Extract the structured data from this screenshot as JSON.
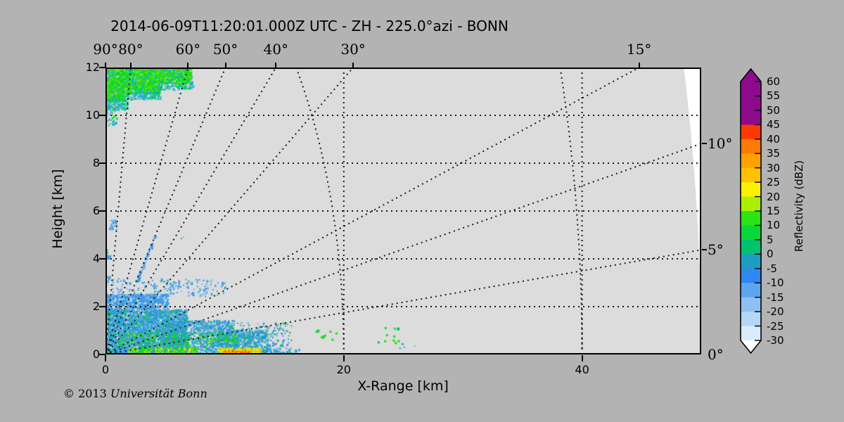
{
  "figure": {
    "outer_bg": "#b3b3b3",
    "plot_bg": "#dcdcdc",
    "beyond_range_bg": "#ffffff",
    "axis_color": "#000000",
    "dot_color": "#1a1a1a"
  },
  "footer": {
    "copyright_prefix": "© 2013",
    "copyright_name": "Universität Bonn"
  },
  "chart_data": {
    "type": "heatmap",
    "subtype": "radar-rhi",
    "title": "2014-06-09T11:20:01.000Z UTC - ZH - 225.0°azi - BONN",
    "xlabel": "X-Range [km]",
    "ylabel": "Height [km]",
    "xlim": [
      0,
      50
    ],
    "ylim": [
      0,
      12
    ],
    "x_ticks": [
      0,
      20,
      40
    ],
    "y_ticks": [
      0,
      2,
      4,
      6,
      8,
      10,
      12
    ],
    "grid": {
      "style": "dotted",
      "horizontal_km": [
        2,
        4,
        6,
        8,
        10
      ],
      "vertical_km": [
        20,
        40
      ],
      "range_arcs_km": [
        20,
        40
      ]
    },
    "max_range_km": 50,
    "elevation_rays_deg": [
      90,
      80,
      60,
      50,
      40,
      30,
      15,
      10,
      5,
      0
    ],
    "rays": {
      "top": [
        {
          "deg": 90,
          "label": "90°"
        },
        {
          "deg": 80,
          "label": "80°"
        },
        {
          "deg": 60,
          "label": "60°"
        },
        {
          "deg": 50,
          "label": "50°"
        },
        {
          "deg": 40,
          "label": "40°"
        },
        {
          "deg": 30,
          "label": "30°"
        },
        {
          "deg": 15,
          "label": "15°"
        }
      ],
      "right": [
        {
          "deg": 10,
          "label": "10°"
        },
        {
          "deg": 5,
          "label": "5°"
        },
        {
          "deg": 0,
          "label": "0°"
        }
      ]
    },
    "colorbar": {
      "label": "Reflectivity (dBZ)",
      "tick_values": [
        60,
        55,
        50,
        45,
        40,
        35,
        30,
        25,
        20,
        15,
        10,
        5,
        0,
        -5,
        -10,
        -15,
        -20,
        -25,
        -30
      ],
      "over_arrow_color": "#8d0a8d",
      "under_arrow_color": "#ffffff",
      "segments": [
        {
          "from": 45,
          "to": 60,
          "color": "#8d0a8d"
        },
        {
          "from": 40,
          "to": 45,
          "color": "#fd3903"
        },
        {
          "from": 35,
          "to": 40,
          "color": "#ff7905"
        },
        {
          "from": 30,
          "to": 35,
          "color": "#ffa103"
        },
        {
          "from": 25,
          "to": 30,
          "color": "#ffc103"
        },
        {
          "from": 20,
          "to": 25,
          "color": "#fdf100"
        },
        {
          "from": 15,
          "to": 20,
          "color": "#aaf000"
        },
        {
          "from": 10,
          "to": 15,
          "color": "#2ce315"
        },
        {
          "from": 5,
          "to": 10,
          "color": "#0bd63a"
        },
        {
          "from": 0,
          "to": 5,
          "color": "#00c46d"
        },
        {
          "from": -5,
          "to": 0,
          "color": "#1e9dc3"
        },
        {
          "from": -10,
          "to": -5,
          "color": "#2f88ef"
        },
        {
          "from": -15,
          "to": -10,
          "color": "#5ea5f0"
        },
        {
          "from": -20,
          "to": -15,
          "color": "#8ec1f2"
        },
        {
          "from": -25,
          "to": -20,
          "color": "#b4d7f6"
        },
        {
          "from": -30,
          "to": -25,
          "color": "#d9ecfb"
        }
      ]
    },
    "palettes": {
      "anvil": [
        [
          "#17dd13",
          42
        ],
        [
          "#35e600",
          16
        ],
        [
          "#9fe000",
          10
        ],
        [
          "#00c65d",
          14
        ],
        [
          "#00b9c6",
          12
        ],
        [
          "#49a0ef",
          6
        ]
      ],
      "anvil_edge": [
        [
          "#00b9c6",
          35
        ],
        [
          "#49a0ef",
          30
        ],
        [
          "#00c65d",
          20
        ],
        [
          "#17dd13",
          15
        ]
      ],
      "blue": [
        [
          "#3f95ee",
          38
        ],
        [
          "#2ba6cb",
          26
        ],
        [
          "#1795b2",
          12
        ],
        [
          "#72b9f1",
          9
        ],
        [
          "#19c53d",
          8
        ],
        [
          "#00c65d",
          7
        ]
      ],
      "teal": [
        [
          "#2ba6cb",
          44
        ],
        [
          "#1795b2",
          22
        ],
        [
          "#3f95ee",
          20
        ],
        [
          "#19c53d",
          8
        ],
        [
          "#72b9f1",
          6
        ]
      ],
      "blue_sparse": [
        [
          "#3f95ee",
          62
        ],
        [
          "#2ba6cb",
          28
        ],
        [
          "#72b9f1",
          10
        ]
      ],
      "green_band": [
        [
          "#19c53d",
          40
        ],
        [
          "#17dd13",
          30
        ],
        [
          "#00c65d",
          20
        ],
        [
          "#9fe000",
          10
        ]
      ],
      "clutter_green": [
        [
          "#17dd13",
          34
        ],
        [
          "#9fe000",
          26
        ],
        [
          "#ffe600",
          16
        ],
        [
          "#00c65d",
          14
        ],
        [
          "#35e600",
          10
        ]
      ],
      "hot_yellow": [
        [
          "#ffe600",
          44
        ],
        [
          "#cfe400",
          22
        ],
        [
          "#ffb300",
          20
        ],
        [
          "#9fe000",
          14
        ]
      ],
      "hot_core": [
        [
          "#ff8c00",
          38
        ],
        [
          "#ff3b00",
          34
        ],
        [
          "#ffe600",
          28
        ]
      ],
      "green_speck": [
        [
          "#17dd13",
          60
        ],
        [
          "#00c65d",
          40
        ]
      ]
    },
    "echo_regions": [
      {
        "name": "anvil-left",
        "x": [
          0,
          1.6
        ],
        "z": [
          10.6,
          12
        ],
        "n": 850,
        "palette": "anvil"
      },
      {
        "name": "anvil-mid",
        "x": [
          1.6,
          4.5
        ],
        "z": [
          10.95,
          12
        ],
        "n": 1050,
        "palette": "anvil"
      },
      {
        "name": "anvil-right",
        "x": [
          4.5,
          7.2
        ],
        "z": [
          11.35,
          12
        ],
        "n": 620,
        "palette": "anvil"
      },
      {
        "name": "anvil-frill-left",
        "x": [
          0,
          1.8
        ],
        "z": [
          10.25,
          10.7
        ],
        "n": 110,
        "palette": "anvil_edge"
      },
      {
        "name": "anvil-frill-mid",
        "x": [
          1.6,
          4.6
        ],
        "z": [
          10.7,
          11.0
        ],
        "n": 130,
        "palette": "anvil_edge"
      },
      {
        "name": "anvil-frill-right",
        "x": [
          4.4,
          7.3
        ],
        "z": [
          11.1,
          11.4
        ],
        "n": 110,
        "palette": "anvil_edge"
      },
      {
        "name": "anvil-tail",
        "x": [
          0,
          0.9
        ],
        "z": [
          9.6,
          10.4
        ],
        "n": 55,
        "palette": "anvil_edge"
      },
      {
        "name": "bl-core",
        "x": [
          0,
          6.8
        ],
        "z": [
          0,
          1.9
        ],
        "n": 3400,
        "palette": "blue"
      },
      {
        "name": "bl-top",
        "x": [
          0,
          5.2
        ],
        "z": [
          1.9,
          2.55
        ],
        "n": 620,
        "palette": "blue_sparse"
      },
      {
        "name": "bl-upper-fringe",
        "x": [
          0,
          10
        ],
        "z": [
          2.45,
          3.2
        ],
        "n": 190,
        "palette": "blue_sparse"
      },
      {
        "name": "bl-mid",
        "x": [
          5,
          10.8
        ],
        "z": [
          0,
          1.45
        ],
        "n": 1250,
        "palette": "blue"
      },
      {
        "name": "bl-right",
        "x": [
          9.5,
          13.6
        ],
        "z": [
          0,
          1.05
        ],
        "n": 600,
        "palette": "teal"
      },
      {
        "name": "bl-fringe",
        "x": [
          11,
          15.6
        ],
        "z": [
          0.1,
          1.35
        ],
        "n": 190,
        "palette": "teal"
      },
      {
        "name": "bl-bottom-row",
        "x": [
          13,
          16.2
        ],
        "z": [
          0,
          0.25
        ],
        "n": 55,
        "palette": "teal"
      },
      {
        "name": "green-band",
        "x": [
          0.5,
          11
        ],
        "z": [
          0.45,
          0.95
        ],
        "n": 210,
        "palette": "green_band"
      },
      {
        "name": "updraft-specks-a",
        "x": [
          0.3,
          0.9
        ],
        "z": [
          5.25,
          5.65
        ],
        "n": 26,
        "palette": "blue_sparse"
      },
      {
        "name": "updraft-specks-b",
        "x": [
          0,
          0.4
        ],
        "z": [
          4.05,
          4.45
        ],
        "n": 14,
        "palette": "blue_sparse"
      },
      {
        "name": "updraft-specks-c",
        "x": [
          0,
          0.35
        ],
        "z": [
          2.9,
          3.3
        ],
        "n": 10,
        "palette": "blue_sparse"
      },
      {
        "name": "ray-streak-50deg",
        "x": [
          2.55,
          4.2
        ],
        "z": [
          3.0,
          5.0
        ],
        "n": 60,
        "palette": "blue_sparse",
        "along_deg": 50
      },
      {
        "name": "lone-speck",
        "x": [
          6.3,
          6.5
        ],
        "z": [
          4.85,
          5.0
        ],
        "n": 2,
        "palette": "teal"
      },
      {
        "name": "clutter-green",
        "x": [
          1.9,
          7.7
        ],
        "z": [
          0,
          0.35
        ],
        "n": 260,
        "palette": "clutter_green"
      },
      {
        "name": "clutter-yellow",
        "x": [
          9.3,
          13.1
        ],
        "z": [
          0,
          0.3
        ],
        "n": 210,
        "palette": "hot_yellow"
      },
      {
        "name": "clutter-core",
        "x": [
          9.7,
          12.0
        ],
        "z": [
          0,
          0.18
        ],
        "n": 100,
        "palette": "hot_core"
      },
      {
        "name": "cell-a",
        "x": [
          17.6,
          19.3
        ],
        "z": [
          0.5,
          1.15
        ],
        "n": 9,
        "size": 3,
        "palette": "green_speck"
      },
      {
        "name": "cell-b",
        "x": [
          22.8,
          24.7
        ],
        "z": [
          0.5,
          1.15
        ],
        "n": 10,
        "size": 3,
        "palette": "green_speck"
      },
      {
        "name": "far-specks",
        "x": [
          24.2,
          26.2
        ],
        "z": [
          0.15,
          0.5
        ],
        "n": 4,
        "palette": "teal"
      }
    ]
  }
}
